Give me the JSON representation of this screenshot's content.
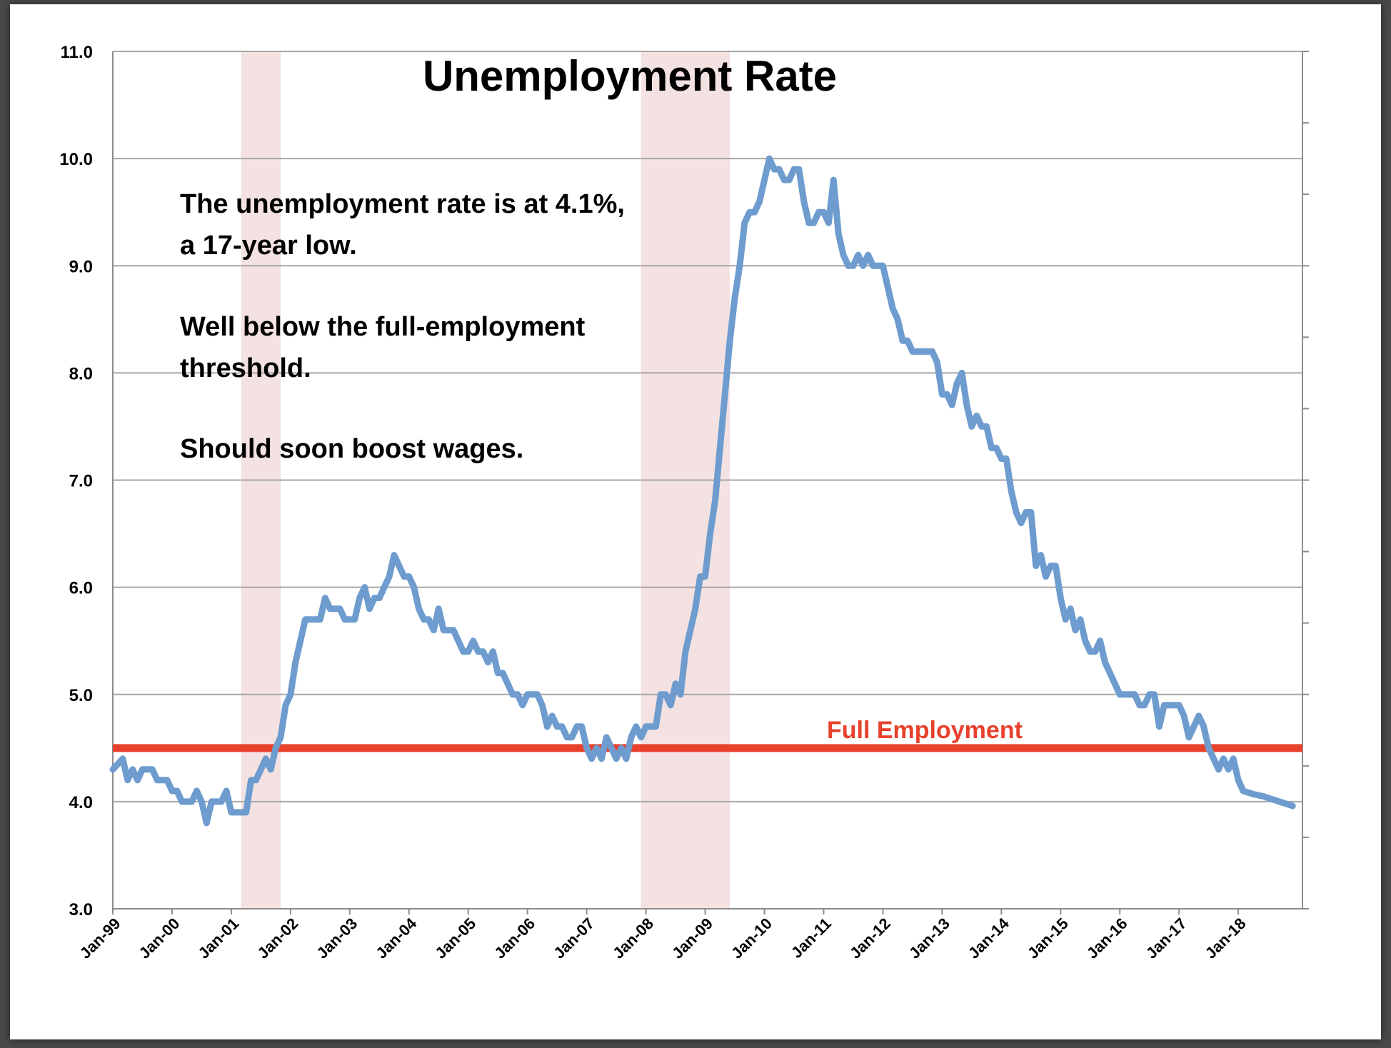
{
  "chart_data": {
    "type": "line",
    "title": "Unemployment Rate",
    "xlabel": "",
    "ylabel": "",
    "ylim": [
      3.0,
      11.0
    ],
    "y_ticks": [
      "3.0",
      "4.0",
      "5.0",
      "6.0",
      "7.0",
      "8.0",
      "9.0",
      "10.0",
      "11.0"
    ],
    "x_tick_labels": [
      "Jan-99",
      "Jan-00",
      "Jan-01",
      "Jan-02",
      "Jan-03",
      "Jan-04",
      "Jan-05",
      "Jan-06",
      "Jan-07",
      "Jan-08",
      "Jan-09",
      "Jan-10",
      "Jan-11",
      "Jan-12",
      "Jan-13",
      "Jan-14",
      "Jan-15",
      "Jan-16",
      "Jan-17",
      "Jan-18"
    ],
    "grid": "horizontal",
    "series": [
      {
        "color": "#6e9ccf",
        "points": [
          [
            "1999-01",
            4.3
          ],
          [
            "1999-03",
            4.4
          ],
          [
            "1999-04",
            4.2
          ],
          [
            "1999-05",
            4.3
          ],
          [
            "1999-06",
            4.2
          ],
          [
            "1999-07",
            4.3
          ],
          [
            "1999-09",
            4.3
          ],
          [
            "1999-10",
            4.2
          ],
          [
            "1999-12",
            4.2
          ],
          [
            "2000-01",
            4.1
          ],
          [
            "2000-02",
            4.1
          ],
          [
            "2000-03",
            4.0
          ],
          [
            "2000-05",
            4.0
          ],
          [
            "2000-06",
            4.1
          ],
          [
            "2000-07",
            4.0
          ],
          [
            "2000-08",
            3.8
          ],
          [
            "2000-09",
            4.0
          ],
          [
            "2000-11",
            4.0
          ],
          [
            "2000-12",
            4.1
          ],
          [
            "2001-01",
            3.9
          ],
          [
            "2001-04",
            3.9
          ],
          [
            "2001-05",
            4.2
          ],
          [
            "2001-06",
            4.2
          ],
          [
            "2001-08",
            4.4
          ],
          [
            "2001-09",
            4.3
          ],
          [
            "2001-10",
            4.5
          ],
          [
            "2001-11",
            4.6
          ],
          [
            "2001-12",
            4.9
          ],
          [
            "2002-01",
            5.0
          ],
          [
            "2002-02",
            5.3
          ],
          [
            "2002-03",
            5.5
          ],
          [
            "2002-04",
            5.7
          ],
          [
            "2002-07",
            5.7
          ],
          [
            "2002-08",
            5.9
          ],
          [
            "2002-09",
            5.8
          ],
          [
            "2002-11",
            5.8
          ],
          [
            "2002-12",
            5.7
          ],
          [
            "2003-02",
            5.7
          ],
          [
            "2003-03",
            5.9
          ],
          [
            "2003-04",
            6.0
          ],
          [
            "2003-05",
            5.8
          ],
          [
            "2003-06",
            5.9
          ],
          [
            "2003-07",
            5.9
          ],
          [
            "2003-09",
            6.1
          ],
          [
            "2003-10",
            6.3
          ],
          [
            "2003-11",
            6.2
          ],
          [
            "2003-12",
            6.1
          ],
          [
            "2004-01",
            6.1
          ],
          [
            "2004-02",
            6.0
          ],
          [
            "2004-03",
            5.8
          ],
          [
            "2004-04",
            5.7
          ],
          [
            "2004-05",
            5.7
          ],
          [
            "2004-06",
            5.6
          ],
          [
            "2004-07",
            5.8
          ],
          [
            "2004-08",
            5.6
          ],
          [
            "2004-10",
            5.6
          ],
          [
            "2004-12",
            5.4
          ],
          [
            "2005-01",
            5.4
          ],
          [
            "2005-02",
            5.5
          ],
          [
            "2005-03",
            5.4
          ],
          [
            "2005-04",
            5.4
          ],
          [
            "2005-05",
            5.3
          ],
          [
            "2005-06",
            5.4
          ],
          [
            "2005-07",
            5.2
          ],
          [
            "2005-08",
            5.2
          ],
          [
            "2005-09",
            5.1
          ],
          [
            "2005-10",
            5.0
          ],
          [
            "2005-11",
            5.0
          ],
          [
            "2005-12",
            4.9
          ],
          [
            "2006-01",
            5.0
          ],
          [
            "2006-03",
            5.0
          ],
          [
            "2006-04",
            4.9
          ],
          [
            "2006-05",
            4.7
          ],
          [
            "2006-06",
            4.8
          ],
          [
            "2006-07",
            4.7
          ],
          [
            "2006-08",
            4.7
          ],
          [
            "2006-09",
            4.6
          ],
          [
            "2006-10",
            4.6
          ],
          [
            "2006-11",
            4.7
          ],
          [
            "2006-12",
            4.7
          ],
          [
            "2007-01",
            4.5
          ],
          [
            "2007-02",
            4.4
          ],
          [
            "2007-03",
            4.5
          ],
          [
            "2007-04",
            4.4
          ],
          [
            "2007-05",
            4.6
          ],
          [
            "2007-06",
            4.5
          ],
          [
            "2007-07",
            4.4
          ],
          [
            "2007-08",
            4.5
          ],
          [
            "2007-09",
            4.4
          ],
          [
            "2007-10",
            4.6
          ],
          [
            "2007-11",
            4.7
          ],
          [
            "2007-12",
            4.6
          ],
          [
            "2008-01",
            4.7
          ],
          [
            "2008-03",
            4.7
          ],
          [
            "2008-04",
            5.0
          ],
          [
            "2008-05",
            5.0
          ],
          [
            "2008-06",
            4.9
          ],
          [
            "2008-07",
            5.1
          ],
          [
            "2008-08",
            5.0
          ],
          [
            "2008-09",
            5.4
          ],
          [
            "2008-10",
            5.6
          ],
          [
            "2008-11",
            5.8
          ],
          [
            "2008-12",
            6.1
          ],
          [
            "2009-01",
            6.1
          ],
          [
            "2009-02",
            6.5
          ],
          [
            "2009-03",
            6.8
          ],
          [
            "2009-04",
            7.3
          ],
          [
            "2009-05",
            7.8
          ],
          [
            "2009-06",
            8.3
          ],
          [
            "2009-07",
            8.7
          ],
          [
            "2009-08",
            9.0
          ],
          [
            "2009-09",
            9.4
          ],
          [
            "2009-10",
            9.5
          ],
          [
            "2009-11",
            9.5
          ],
          [
            "2009-12",
            9.6
          ],
          [
            "2010-01",
            9.8
          ],
          [
            "2010-02",
            10.0
          ],
          [
            "2010-03",
            9.9
          ],
          [
            "2010-04",
            9.9
          ],
          [
            "2010-05",
            9.8
          ],
          [
            "2010-06",
            9.8
          ],
          [
            "2010-07",
            9.9
          ],
          [
            "2010-08",
            9.9
          ],
          [
            "2010-09",
            9.6
          ],
          [
            "2010-10",
            9.4
          ],
          [
            "2010-11",
            9.4
          ],
          [
            "2010-12",
            9.5
          ],
          [
            "2011-01",
            9.5
          ],
          [
            "2011-02",
            9.4
          ],
          [
            "2011-03",
            9.8
          ],
          [
            "2011-04",
            9.3
          ],
          [
            "2011-05",
            9.1
          ],
          [
            "2011-06",
            9.0
          ],
          [
            "2011-07",
            9.0
          ],
          [
            "2011-08",
            9.1
          ],
          [
            "2011-09",
            9.0
          ],
          [
            "2011-10",
            9.1
          ],
          [
            "2011-11",
            9.0
          ],
          [
            "2011-12",
            9.0
          ],
          [
            "2012-01",
            9.0
          ],
          [
            "2012-02",
            8.8
          ],
          [
            "2012-03",
            8.6
          ],
          [
            "2012-04",
            8.5
          ],
          [
            "2012-05",
            8.3
          ],
          [
            "2012-06",
            8.3
          ],
          [
            "2012-07",
            8.2
          ],
          [
            "2012-11",
            8.2
          ],
          [
            "2012-12",
            8.1
          ],
          [
            "2013-01",
            7.8
          ],
          [
            "2013-02",
            7.8
          ],
          [
            "2013-03",
            7.7
          ],
          [
            "2013-04",
            7.9
          ],
          [
            "2013-05",
            8.0
          ],
          [
            "2013-06",
            7.7
          ],
          [
            "2013-07",
            7.5
          ],
          [
            "2013-08",
            7.6
          ],
          [
            "2013-09",
            7.5
          ],
          [
            "2013-10",
            7.5
          ],
          [
            "2013-11",
            7.3
          ],
          [
            "2013-12",
            7.3
          ],
          [
            "2014-01",
            7.2
          ],
          [
            "2014-02",
            7.2
          ],
          [
            "2014-03",
            6.9
          ],
          [
            "2014-04",
            6.7
          ],
          [
            "2014-05",
            6.6
          ],
          [
            "2014-06",
            6.7
          ],
          [
            "2014-07",
            6.7
          ],
          [
            "2014-08",
            6.2
          ],
          [
            "2014-09",
            6.3
          ],
          [
            "2014-10",
            6.1
          ],
          [
            "2014-11",
            6.2
          ],
          [
            "2014-12",
            6.2
          ],
          [
            "2015-01",
            5.9
          ],
          [
            "2015-02",
            5.7
          ],
          [
            "2015-03",
            5.8
          ],
          [
            "2015-04",
            5.6
          ],
          [
            "2015-05",
            5.7
          ],
          [
            "2015-06",
            5.5
          ],
          [
            "2015-07",
            5.4
          ],
          [
            "2015-08",
            5.4
          ],
          [
            "2015-09",
            5.5
          ],
          [
            "2015-10",
            5.3
          ],
          [
            "2015-11",
            5.2
          ],
          [
            "2015-12",
            5.1
          ],
          [
            "2016-01",
            5.0
          ],
          [
            "2016-04",
            5.0
          ],
          [
            "2016-05",
            4.9
          ],
          [
            "2016-06",
            4.9
          ],
          [
            "2016-07",
            5.0
          ],
          [
            "2016-08",
            5.0
          ],
          [
            "2016-09",
            4.7
          ],
          [
            "2016-10",
            4.9
          ],
          [
            "2016-11",
            4.9
          ],
          [
            "2016-12",
            4.9
          ],
          [
            "2017-01",
            4.9
          ],
          [
            "2017-02",
            4.8
          ],
          [
            "2017-03",
            4.6
          ],
          [
            "2017-04",
            4.7
          ],
          [
            "2017-05",
            4.8
          ],
          [
            "2017-06",
            4.7
          ],
          [
            "2017-07",
            4.5
          ],
          [
            "2017-08",
            4.4
          ],
          [
            "2017-09",
            4.3
          ],
          [
            "2017-10",
            4.4
          ],
          [
            "2017-11",
            4.3
          ],
          [
            "2017-12",
            4.4
          ],
          [
            "2018-01",
            4.2
          ],
          [
            "2018-02",
            4.1
          ],
          [
            "2018-04",
            4.07
          ],
          [
            "2018-06",
            4.05
          ],
          [
            "2018-08",
            4.02
          ],
          [
            "2018-10",
            3.99
          ],
          [
            "2018-12",
            3.96
          ]
        ]
      }
    ],
    "reference_line": {
      "value": 4.5,
      "label": "Full Employment",
      "color": "#e8412c"
    },
    "shaded_periods": [
      {
        "start": "2001-03",
        "end": "2001-11",
        "color": "#f3e2e1"
      },
      {
        "start": "2007-12",
        "end": "2009-06",
        "color": "#f3e2e1"
      }
    ],
    "annotations": [
      "The unemployment rate is at 4.1%,",
      "a 17-year low.",
      "Well below the full-employment",
      "threshold.",
      "Should soon boost wages."
    ]
  }
}
